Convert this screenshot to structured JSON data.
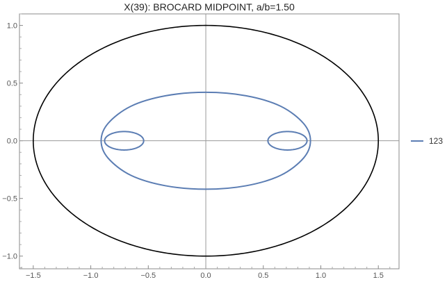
{
  "chart_data": {
    "type": "line",
    "title": "X(39): BROCARD MIDPOINT, a/b=1.50",
    "xlabel": "",
    "ylabel": "",
    "xlim": [
      -1.62,
      1.68
    ],
    "ylim": [
      -1.11,
      1.1
    ],
    "x_ticks": [
      -1.5,
      -1.0,
      -0.5,
      0.0,
      0.5,
      1.0,
      1.5
    ],
    "x_tick_labels": [
      "−1.5",
      "−1.0",
      "−0.5",
      "0.0",
      "0.5",
      "1.0",
      "1.5"
    ],
    "y_ticks": [
      -1.0,
      -0.5,
      0.0,
      0.5,
      1.0
    ],
    "y_tick_labels": [
      "−1.0",
      "−0.5",
      "0.0",
      "0.5",
      "1.0"
    ],
    "grid": false,
    "axes_through_origin": true,
    "legend_position": "right",
    "series": [
      {
        "kind": "ellipse",
        "color": "#000000",
        "a": 1.5,
        "b": 1.0
      },
      {
        "name": "123",
        "kind": "brocard-midpoint-locus",
        "color": "#5b7db3",
        "outer_loop": {
          "x": [
            0.0,
            0.35,
            0.65,
            0.85,
            0.91,
            0.85,
            0.65,
            0.35,
            0.0
          ],
          "y": [
            0.42,
            0.39,
            0.3,
            0.15,
            0.0,
            -0.15,
            -0.3,
            -0.39,
            -0.42
          ]
        },
        "inner_loops": [
          {
            "center_x": 0.71,
            "center_y": 0.0,
            "half_width": 0.17,
            "half_height": 0.08
          },
          {
            "center_x": -0.71,
            "center_y": 0.0,
            "half_width": 0.17,
            "half_height": 0.08
          }
        ]
      }
    ]
  },
  "legend": {
    "label": "123"
  }
}
